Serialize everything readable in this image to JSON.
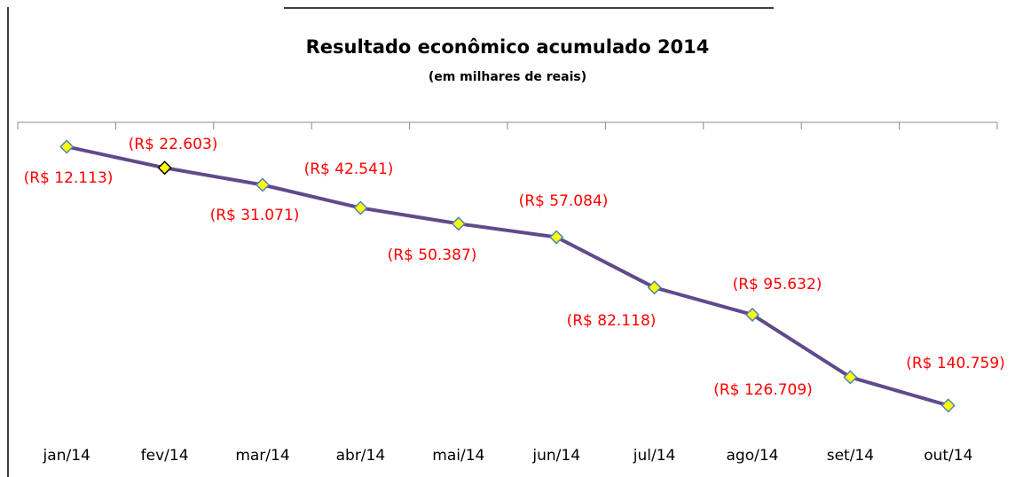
{
  "chart_data": {
    "type": "line",
    "title": "Resultado econômico acumulado 2014",
    "subtitle": "(em milhares de reais)",
    "categories": [
      "jan/14",
      "fev/14",
      "mar/14",
      "abr/14",
      "mai/14",
      "jun/14",
      "jul/14",
      "ago/14",
      "set/14",
      "out/14"
    ],
    "series": [
      {
        "name": "Resultado",
        "color": "#5f4b8b",
        "marker_color": "#ffff00",
        "marker_edge_color": "#4f81bd",
        "label_color": "#ff0000",
        "values": [
          -12113,
          -22603,
          -31071,
          -42541,
          -50387,
          -57084,
          -82118,
          -95632,
          -126709,
          -140759
        ],
        "value_labels": [
          "(R$ 12.113)",
          "(R$ 22.603)",
          "(R$ 31.071)",
          "(R$ 42.541)",
          "(R$ 50.387)",
          "(R$ 57.084)",
          "(R$ 82.118)",
          "(R$ 95.632)",
          "(R$ 126.709)",
          "(R$ 140.759)"
        ]
      }
    ],
    "ylim": [
      -160000,
      0
    ]
  }
}
